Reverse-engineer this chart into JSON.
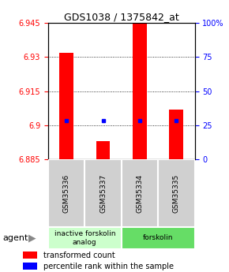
{
  "title": "GDS1038 / 1375842_at",
  "samples": [
    "GSM35336",
    "GSM35337",
    "GSM35334",
    "GSM35335"
  ],
  "red_values": [
    6.932,
    6.893,
    6.945,
    6.907
  ],
  "blue_values": [
    6.902,
    6.902,
    6.902,
    6.902
  ],
  "ymin": 6.885,
  "ymax": 6.945,
  "yticks_left": [
    6.885,
    6.9,
    6.915,
    6.93,
    6.945
  ],
  "yticks_right": [
    0,
    25,
    50,
    75,
    100
  ],
  "groups": [
    {
      "label": "inactive forskolin\nanalog",
      "color": "#ccffcc",
      "samples": [
        0,
        1
      ]
    },
    {
      "label": "forskolin",
      "color": "#66dd66",
      "samples": [
        2,
        3
      ]
    }
  ],
  "agent_label": "agent",
  "legend_red": "transformed count",
  "legend_blue": "percentile rank within the sample",
  "bar_base": 6.885,
  "sample_box_color": "#d0d0d0",
  "title_fontsize": 9,
  "tick_fontsize": 7,
  "label_fontsize": 7
}
